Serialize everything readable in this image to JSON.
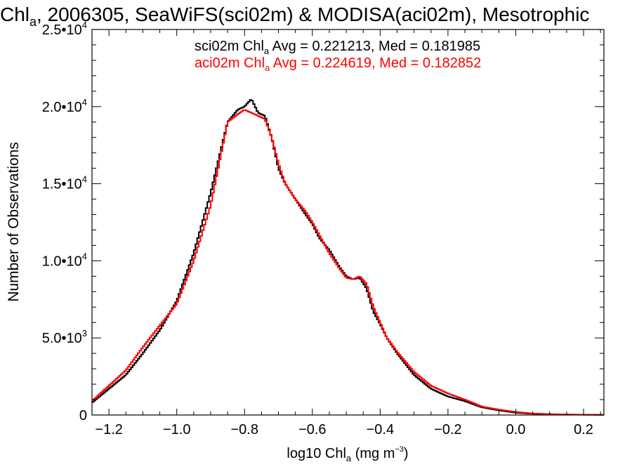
{
  "chart_data": {
    "type": "line",
    "step": true,
    "title": {
      "prefix": "Chl",
      "sub": "a",
      "rest": ", 2006305, SeaWiFS(sci02m) & MODISA(aci02m), Mesotrophic"
    },
    "xlabel": {
      "prefix": "log10 Chl",
      "sub": "a",
      "rest": " (mg m",
      "sup": "−3",
      "end": ")"
    },
    "ylabel": "Number of Observations",
    "xlim": [
      -1.25,
      0.26
    ],
    "ylim": [
      0,
      25000
    ],
    "x_ticks": [
      {
        "value": -1.2,
        "label": "−1.2"
      },
      {
        "value": -1.0,
        "label": "−1.0"
      },
      {
        "value": -0.8,
        "label": "−0.8"
      },
      {
        "value": -0.6,
        "label": "−0.6"
      },
      {
        "value": -0.4,
        "label": "−0.4"
      },
      {
        "value": -0.2,
        "label": "−0.2"
      },
      {
        "value": 0.0,
        "label": "0.0"
      },
      {
        "value": 0.2,
        "label": "0.2"
      }
    ],
    "y_ticks": [
      {
        "value": 0,
        "mant": "0",
        "exp": ""
      },
      {
        "value": 5000,
        "mant": "5.0•10",
        "exp": "3"
      },
      {
        "value": 10000,
        "mant": "1.0•10",
        "exp": "4"
      },
      {
        "value": 15000,
        "mant": "1.5•10",
        "exp": "4"
      },
      {
        "value": 20000,
        "mant": "2.0•10",
        "exp": "4"
      },
      {
        "value": 25000,
        "mant": "2.5•10",
        "exp": "4"
      }
    ],
    "annotations": [
      {
        "series": "sci02m",
        "prefix": "sci02m Chl",
        "sub": "a",
        "rest": " Avg = 0.221213, Med = 0.181985",
        "color": "#000000"
      },
      {
        "series": "aci02m",
        "prefix": "aci02m Chl",
        "sub": "a",
        "rest": " Avg = 0.224619, Med = 0.182852",
        "color": "#ff0000"
      }
    ],
    "grid": false,
    "series": [
      {
        "name": "sci02m",
        "color": "#000000",
        "points": [
          [
            -1.25,
            800
          ],
          [
            -1.2,
            1700
          ],
          [
            -1.15,
            2600
          ],
          [
            -1.1,
            4000
          ],
          [
            -1.05,
            5500
          ],
          [
            -1.0,
            7400
          ],
          [
            -0.95,
            10500
          ],
          [
            -0.9,
            14400
          ],
          [
            -0.85,
            19000
          ],
          [
            -0.82,
            19800
          ],
          [
            -0.8,
            20000
          ],
          [
            -0.78,
            20500
          ],
          [
            -0.76,
            19600
          ],
          [
            -0.74,
            19400
          ],
          [
            -0.72,
            18000
          ],
          [
            -0.7,
            16000
          ],
          [
            -0.68,
            15000
          ],
          [
            -0.65,
            14000
          ],
          [
            -0.62,
            13000
          ],
          [
            -0.6,
            12400
          ],
          [
            -0.58,
            11500
          ],
          [
            -0.55,
            10700
          ],
          [
            -0.52,
            9600
          ],
          [
            -0.5,
            9000
          ],
          [
            -0.48,
            8800
          ],
          [
            -0.46,
            8900
          ],
          [
            -0.44,
            8200
          ],
          [
            -0.42,
            6700
          ],
          [
            -0.4,
            5900
          ],
          [
            -0.38,
            5000
          ],
          [
            -0.35,
            4000
          ],
          [
            -0.3,
            2600
          ],
          [
            -0.25,
            1700
          ],
          [
            -0.2,
            1200
          ],
          [
            -0.15,
            900
          ],
          [
            -0.1,
            500
          ],
          [
            -0.05,
            300
          ],
          [
            0.0,
            150
          ],
          [
            0.05,
            80
          ],
          [
            0.1,
            50
          ],
          [
            0.15,
            30
          ],
          [
            0.2,
            20
          ],
          [
            0.26,
            10
          ]
        ]
      },
      {
        "name": "aci02m",
        "color": "#ff0000",
        "points": [
          [
            -1.25,
            900
          ],
          [
            -1.2,
            1900
          ],
          [
            -1.15,
            2900
          ],
          [
            -1.1,
            4400
          ],
          [
            -1.05,
            5800
          ],
          [
            -1.0,
            7200
          ],
          [
            -0.95,
            10000
          ],
          [
            -0.9,
            13600
          ],
          [
            -0.85,
            19000
          ],
          [
            -0.82,
            19500
          ],
          [
            -0.8,
            19800
          ],
          [
            -0.78,
            19600
          ],
          [
            -0.76,
            19400
          ],
          [
            -0.74,
            19200
          ],
          [
            -0.72,
            18000
          ],
          [
            -0.7,
            16300
          ],
          [
            -0.68,
            15000
          ],
          [
            -0.65,
            14000
          ],
          [
            -0.62,
            13200
          ],
          [
            -0.6,
            12500
          ],
          [
            -0.58,
            11700
          ],
          [
            -0.55,
            10500
          ],
          [
            -0.52,
            9500
          ],
          [
            -0.5,
            8900
          ],
          [
            -0.48,
            8800
          ],
          [
            -0.46,
            9000
          ],
          [
            -0.44,
            8500
          ],
          [
            -0.42,
            7000
          ],
          [
            -0.4,
            6000
          ],
          [
            -0.38,
            5000
          ],
          [
            -0.35,
            4100
          ],
          [
            -0.3,
            2800
          ],
          [
            -0.25,
            1900
          ],
          [
            -0.2,
            1400
          ],
          [
            -0.15,
            1000
          ],
          [
            -0.1,
            550
          ],
          [
            -0.05,
            350
          ],
          [
            0.0,
            200
          ],
          [
            0.05,
            100
          ],
          [
            0.1,
            60
          ],
          [
            0.15,
            35
          ],
          [
            0.2,
            20
          ],
          [
            0.26,
            10
          ]
        ]
      }
    ]
  }
}
